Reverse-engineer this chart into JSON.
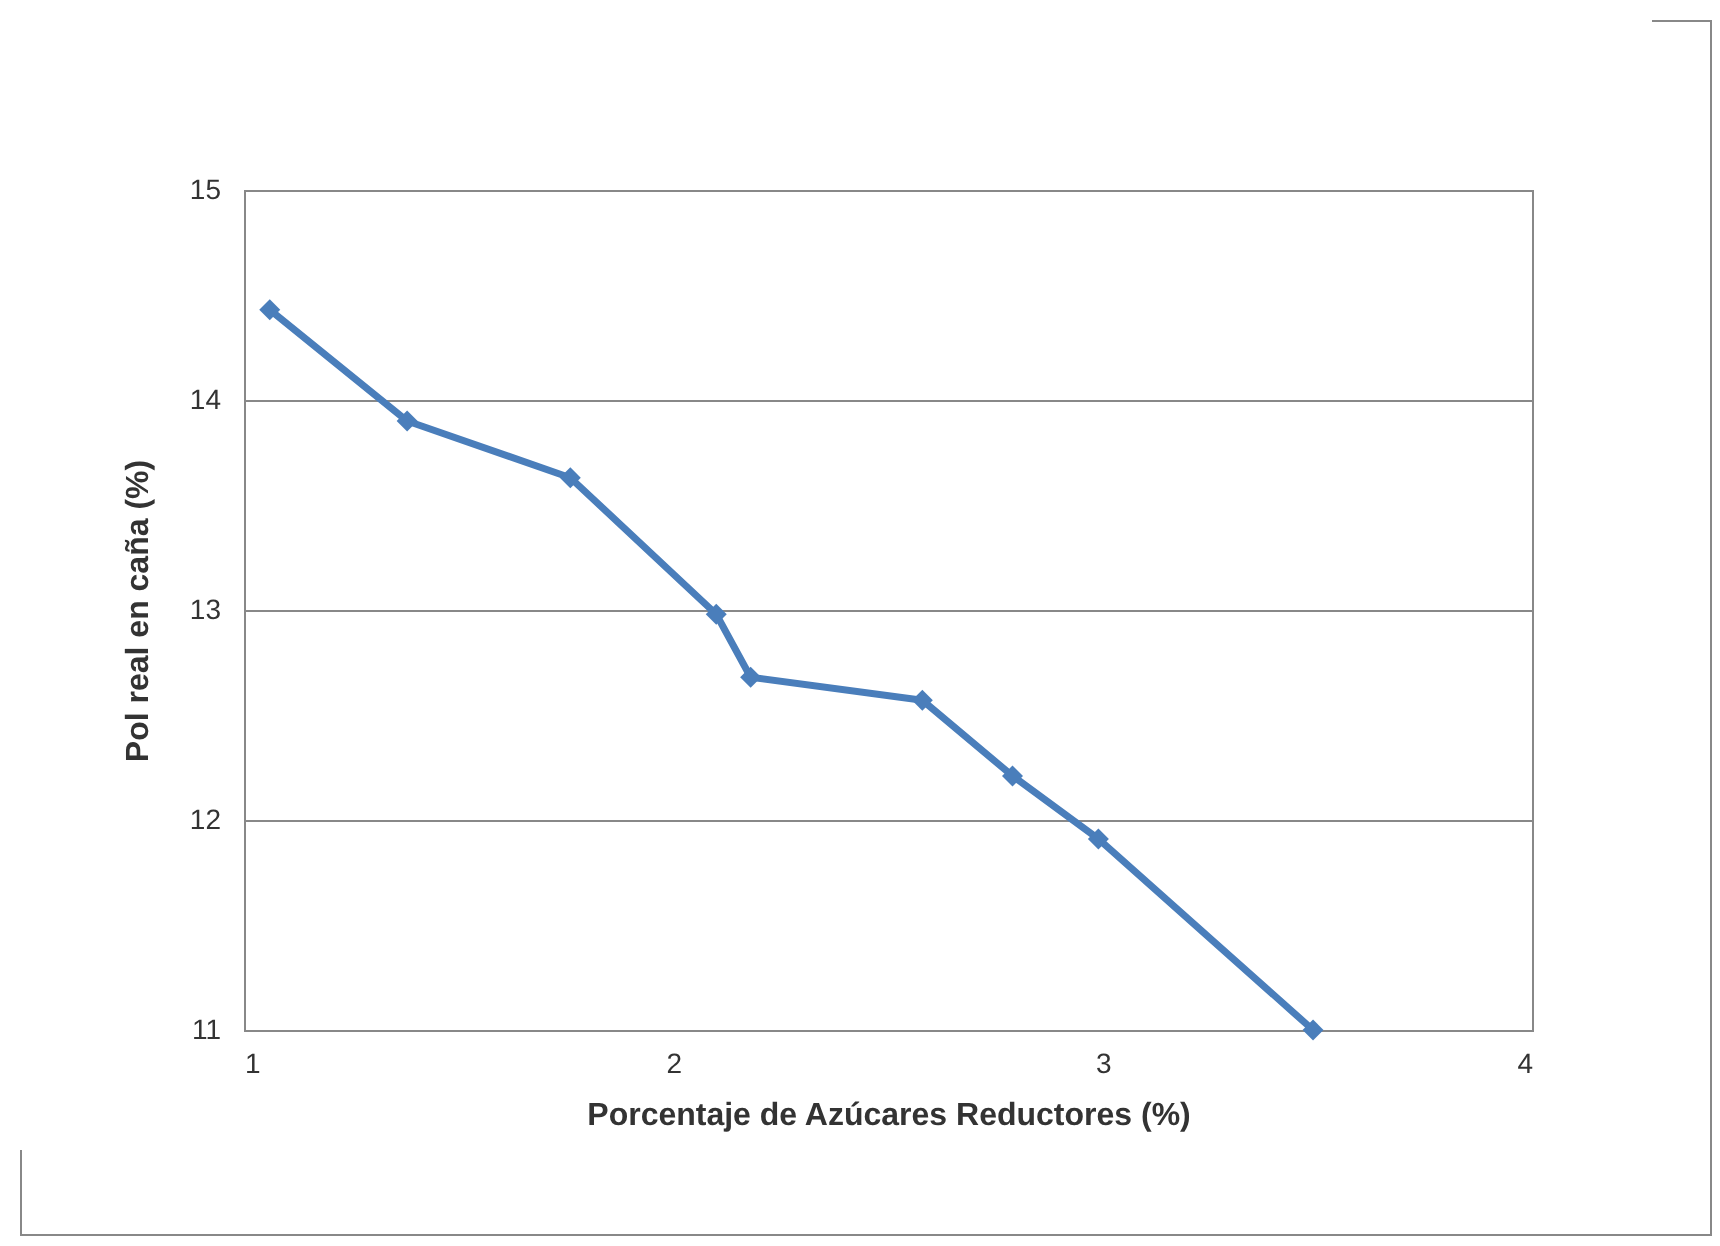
{
  "chart_data": {
    "type": "line",
    "xlabel": "Porcentaje de Azúcares Reductores (%)",
    "ylabel": "Pol real en caña (%)",
    "x": [
      1.06,
      1.38,
      1.76,
      2.1,
      2.18,
      2.58,
      2.79,
      2.99,
      3.49
    ],
    "series": [
      {
        "color": "#4a7ebb",
        "values": [
          14.43,
          13.9,
          13.63,
          12.98,
          12.68,
          12.57,
          12.21,
          11.91,
          11.0
        ]
      }
    ],
    "xlim": [
      1,
      4
    ],
    "xticks": [
      1,
      2,
      3,
      4
    ],
    "ylim": [
      11,
      15
    ],
    "yticks": [
      11,
      12,
      13,
      14,
      15
    ],
    "grid": "y",
    "marker": "diamond",
    "line_style": "solid",
    "legend": false
  }
}
